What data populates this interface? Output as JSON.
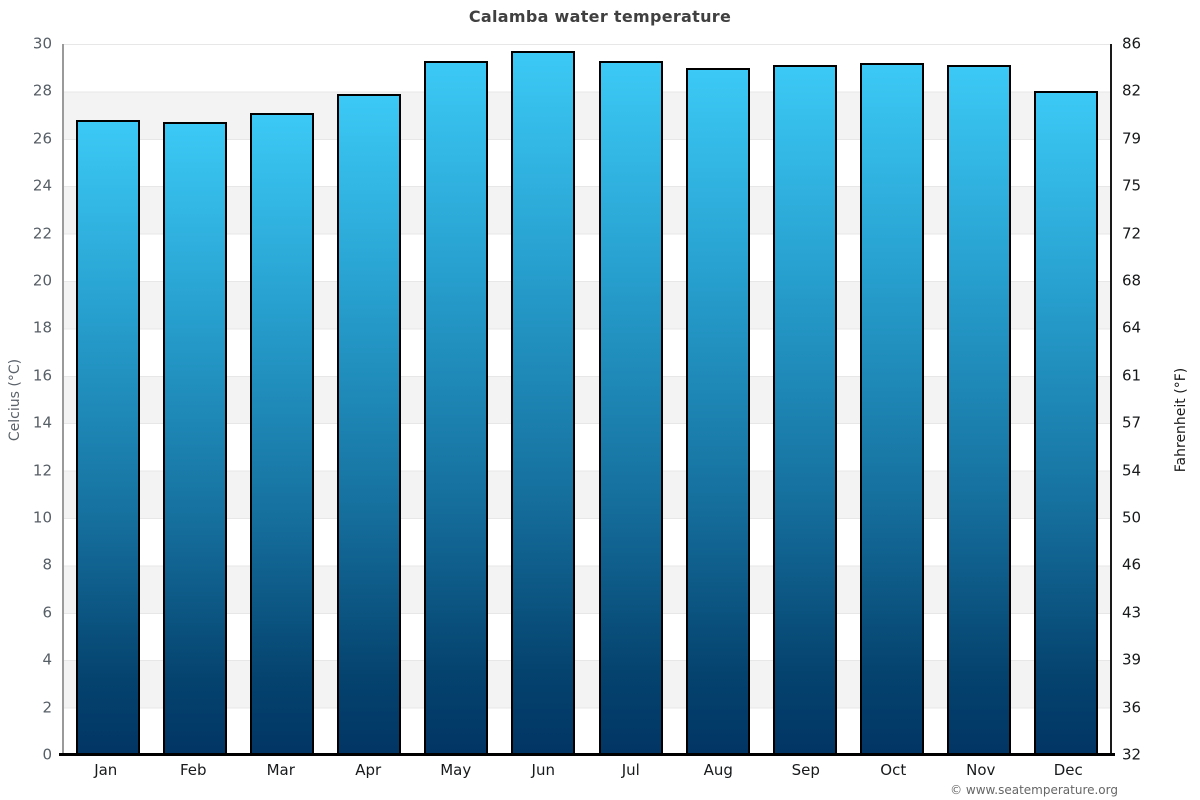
{
  "title": "Calamba water temperature",
  "footer": {
    "credit": "© www.seatemperature.org"
  },
  "chart_data": {
    "type": "bar",
    "title": "Calamba water temperature",
    "categories": [
      "Jan",
      "Feb",
      "Mar",
      "Apr",
      "May",
      "Jun",
      "Jul",
      "Aug",
      "Sep",
      "Oct",
      "Nov",
      "Dec"
    ],
    "series": [
      {
        "name": "Water temperature (°C)",
        "values": [
          26.8,
          26.7,
          27.1,
          27.9,
          29.3,
          29.7,
          29.3,
          29.0,
          29.1,
          29.2,
          29.1,
          28.0
        ]
      }
    ],
    "ylabel_left": "Celcius (°C)",
    "ylabel_right": "Fahrenheit (°F)",
    "ylim_celsius": [
      0,
      30
    ],
    "yticks_celsius": [
      0,
      2,
      4,
      6,
      8,
      10,
      12,
      14,
      16,
      18,
      20,
      22,
      24,
      26,
      28,
      30
    ],
    "yticks_fahrenheit": [
      32,
      36,
      39,
      43,
      46,
      50,
      54,
      57,
      61,
      64,
      68,
      72,
      75,
      79,
      82,
      86
    ],
    "grid": "horizontal-bands-every-2C",
    "legend": "none",
    "colors": {
      "bar_gradient_top": "#3cc9f5",
      "bar_gradient_bottom": "#013564",
      "bar_border": "#000000",
      "band_light": "#ffffff",
      "band_shade": "#f3f3f3",
      "title_text": "#404040",
      "left_axis_text": "#565e66",
      "right_axis_text": "#17191b"
    }
  }
}
